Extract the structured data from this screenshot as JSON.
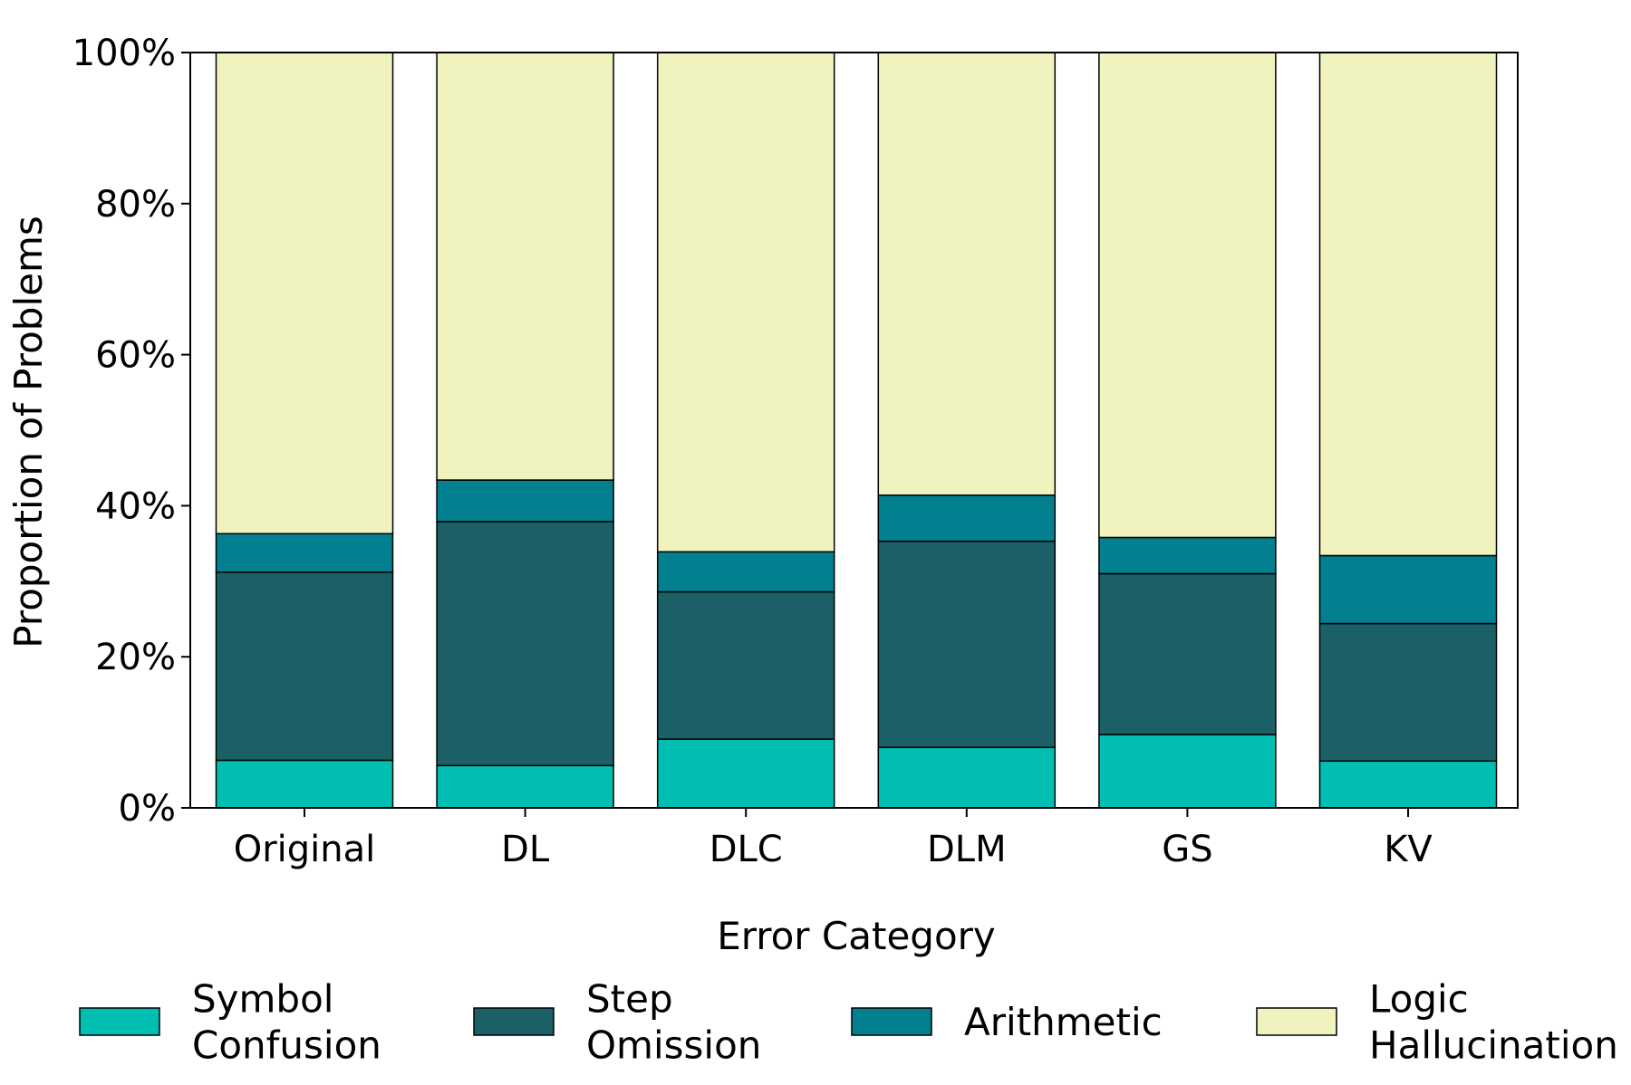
{
  "chart_data": {
    "type": "bar",
    "stacked": true,
    "title": "",
    "xlabel": "Error Category",
    "ylabel": "Proportion of Problems",
    "ylim": [
      0,
      100
    ],
    "yticks": [
      0,
      20,
      40,
      60,
      80,
      100
    ],
    "ytick_labels": [
      "0%",
      "20%",
      "40%",
      "60%",
      "80%",
      "100%"
    ],
    "categories": [
      "Original",
      "DL",
      "DLC",
      "DLM",
      "GS",
      "KV"
    ],
    "series": [
      {
        "name": "Symbol Confusion",
        "legend_lines": [
          "Symbol",
          "Confusion"
        ],
        "color": "#00bfb2",
        "values": [
          6.3,
          5.6,
          9.1,
          8.0,
          9.7,
          6.2
        ]
      },
      {
        "name": "Step Omission",
        "legend_lines": [
          "Step",
          "Omission"
        ],
        "color": "#1c6067",
        "values": [
          24.9,
          32.3,
          19.5,
          27.3,
          21.3,
          18.2
        ]
      },
      {
        "name": "Arithmetic",
        "legend_lines": [
          "Arithmetic"
        ],
        "color": "#028090",
        "values": [
          5.1,
          5.5,
          5.3,
          6.1,
          4.8,
          9.0
        ]
      },
      {
        "name": "Logic Hallucination",
        "legend_lines": [
          "Logic",
          "Hallucination"
        ],
        "color": "#f0f3bd",
        "values": [
          63.7,
          56.6,
          66.1,
          58.6,
          64.2,
          66.6
        ]
      }
    ],
    "grid": false,
    "legend_position": "bottom"
  }
}
